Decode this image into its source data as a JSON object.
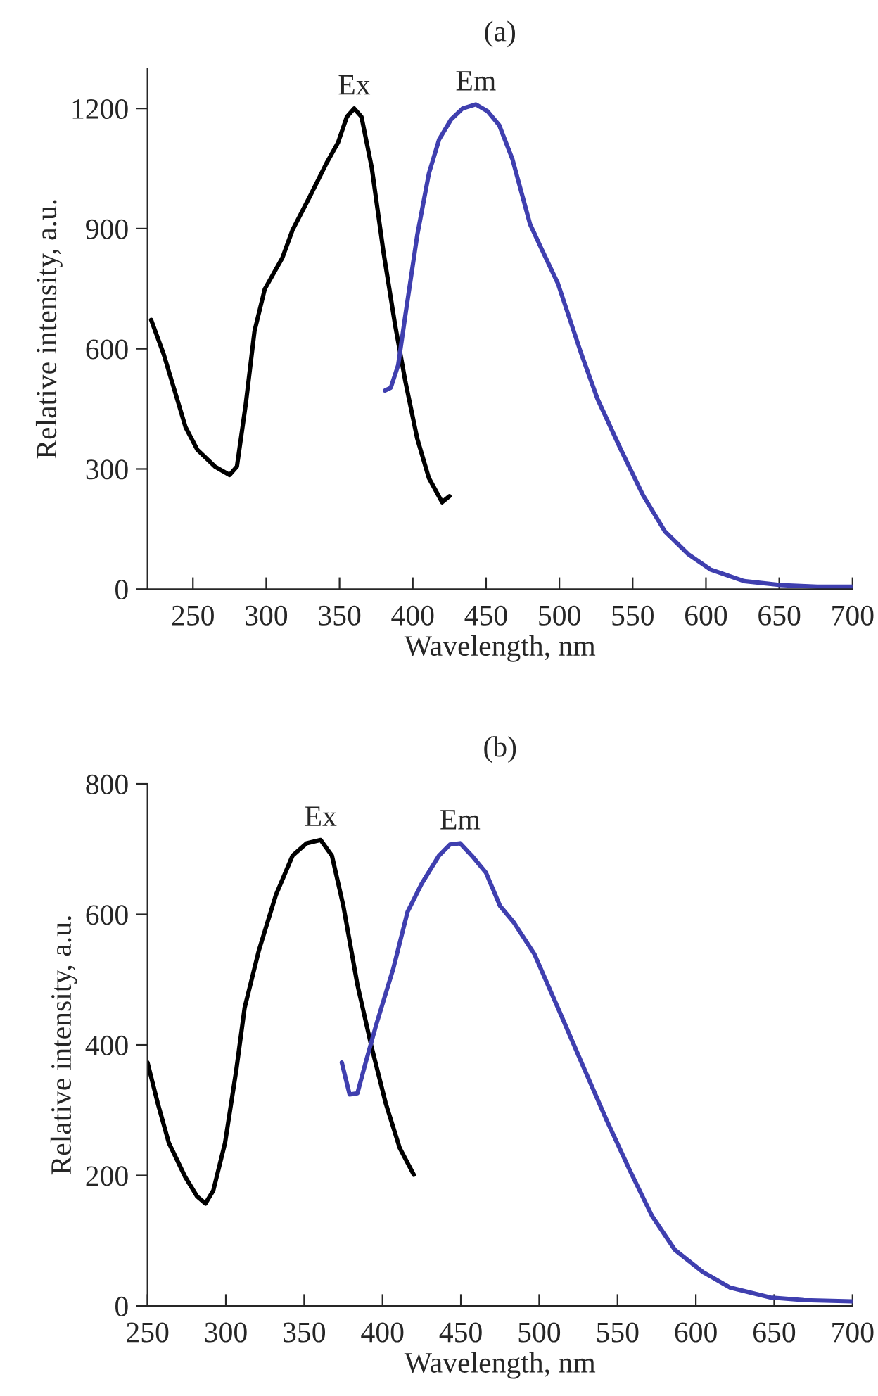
{
  "chart_data": [
    {
      "type": "line",
      "title": "(a)",
      "xlabel": "Wavelength, nm",
      "ylabel": "Relative intensity, a.u.",
      "xlim": [
        219,
        700
      ],
      "ylim": [
        0,
        1300
      ],
      "xticks": [
        250,
        300,
        350,
        400,
        450,
        500,
        550,
        600,
        650,
        700
      ],
      "yticks": [
        0,
        300,
        600,
        900,
        1200
      ],
      "grid": false,
      "line_style": "solid",
      "marker": "none",
      "series": [
        {
          "name": "Ex",
          "color": "#000000",
          "x": [
            221.5,
            230,
            234,
            245,
            253,
            265,
            275,
            280,
            286,
            292,
            299,
            311,
            318,
            330,
            341.5,
            349,
            355,
            360,
            365,
            372,
            380,
            388,
            395,
            403,
            411,
            420,
            425
          ],
          "values": [
            672,
            587,
            538,
            404,
            348,
            306,
            285,
            306,
            461,
            644,
            749,
            827,
            897,
            982,
            1066,
            1115,
            1179,
            1200,
            1179,
            1052,
            841,
            658,
            517,
            376,
            277,
            217,
            232
          ]
        },
        {
          "name": "Em",
          "color": "#3f3faf",
          "x": [
            381,
            385,
            390,
            395,
            403,
            411,
            418,
            426,
            434,
            443,
            451,
            459,
            468,
            480,
            488,
            499,
            515,
            526,
            542,
            557,
            572,
            588,
            603,
            626,
            651,
            676,
            700
          ],
          "values": [
            496,
            503,
            559,
            686,
            883,
            1038,
            1123,
            1172,
            1200,
            1210,
            1193,
            1158,
            1073,
            911,
            848,
            763,
            587,
            475,
            348,
            235,
            144,
            87,
            49,
            20,
            10,
            6,
            6
          ]
        }
      ]
    },
    {
      "type": "line",
      "title": "(b)",
      "xlabel": "Wavelength, nm",
      "ylabel": "Relative intensity, a.u.",
      "xlim": [
        250,
        700
      ],
      "ylim": [
        0,
        800
      ],
      "xticks": [
        250,
        300,
        350,
        400,
        450,
        500,
        550,
        600,
        650,
        700
      ],
      "yticks": [
        0,
        200,
        400,
        600,
        800
      ],
      "grid": false,
      "line_style": "solid",
      "marker": "none",
      "series": [
        {
          "name": "Ex",
          "color": "#000000",
          "x": [
            250,
            256.5,
            263.6,
            274,
            281.6,
            287,
            292,
            299.5,
            306.7,
            312,
            321,
            332,
            342.6,
            351.5,
            360.5,
            367.7,
            375,
            384,
            393,
            402,
            411,
            420
          ],
          "values": [
            373,
            311,
            250,
            198,
            168,
            157,
            177,
            250,
            362,
            457,
            544,
            630,
            690,
            709,
            714,
            690,
            613,
            492,
            397,
            311,
            242,
            201
          ]
        },
        {
          "name": "Em",
          "color": "#3f3faf",
          "x": [
            374,
            379,
            384,
            389,
            396,
            407,
            416,
            425,
            436,
            443,
            449.5,
            457,
            466,
            475,
            484,
            497,
            515,
            529,
            543,
            558,
            572,
            586.6,
            604.5,
            622,
            647.6,
            669,
            699.6
          ],
          "values": [
            373,
            324,
            326,
            371,
            431,
            518,
            604,
            647,
            690,
            707,
            709,
            690,
            664,
            613,
            587,
            539,
            440,
            362,
            285,
            207,
            138,
            86,
            52,
            28,
            13,
            9,
            7
          ]
        }
      ]
    }
  ]
}
